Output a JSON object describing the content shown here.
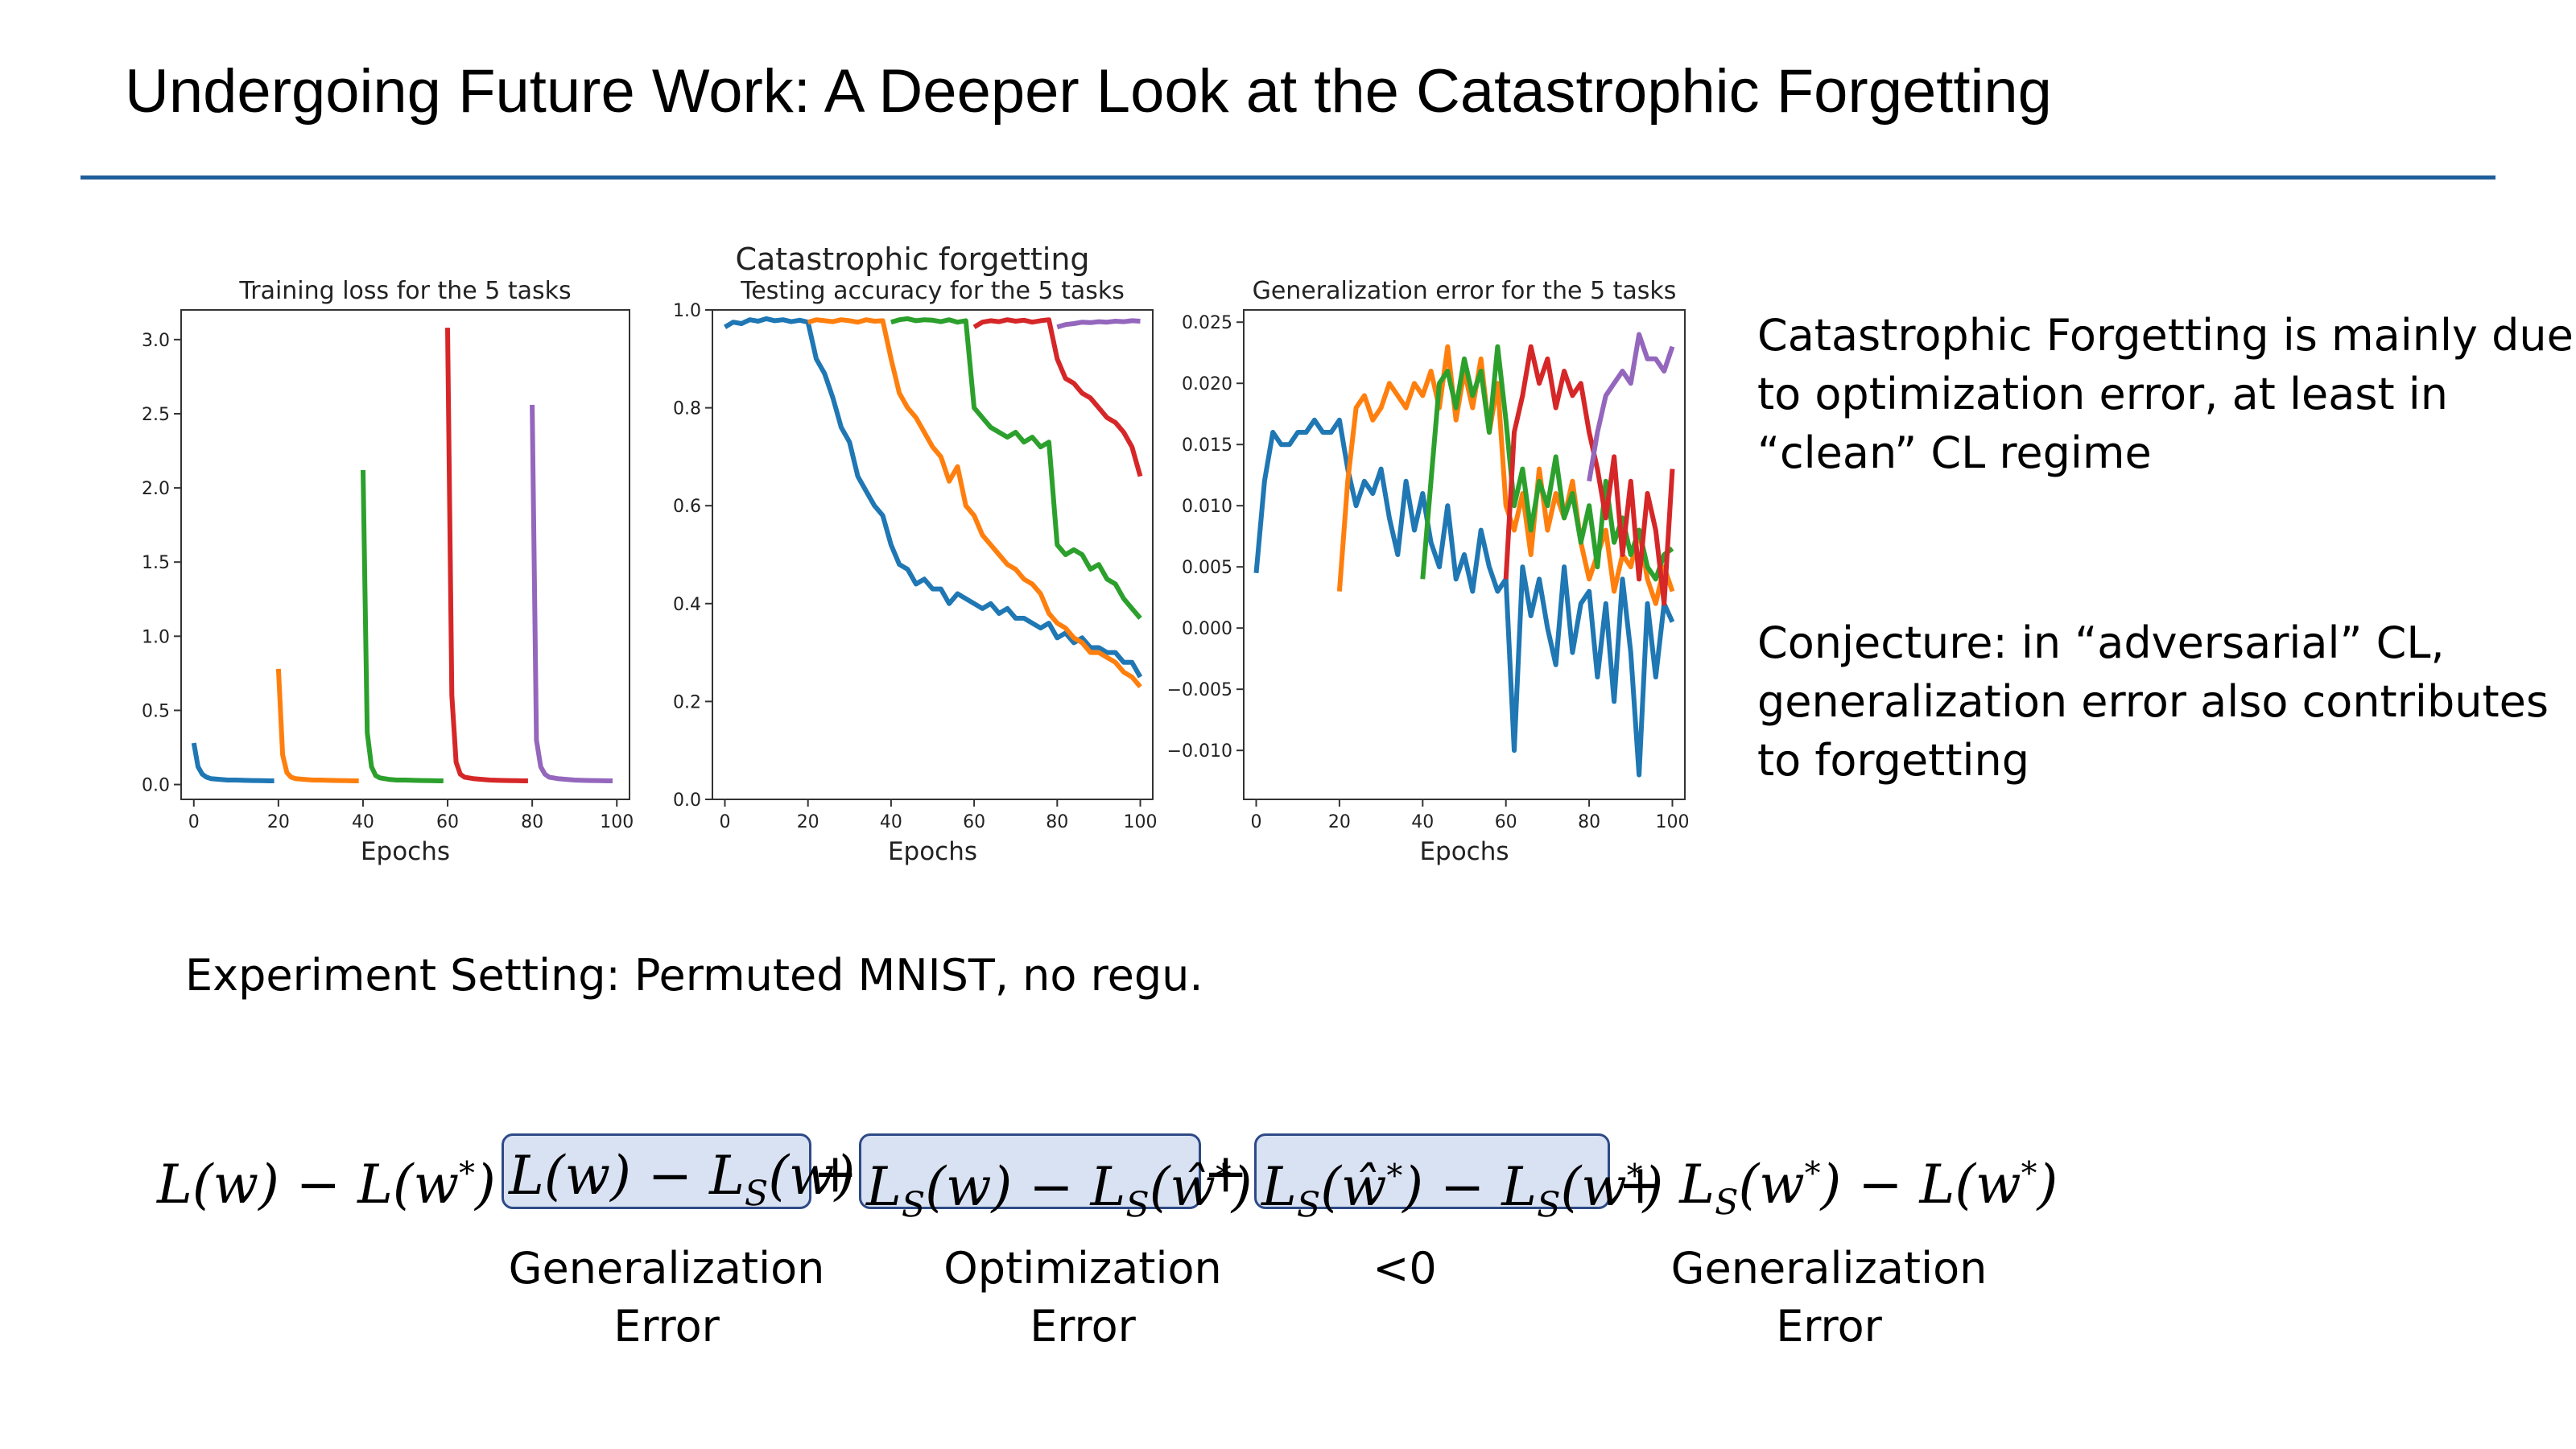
{
  "slide": {
    "title": "Undergoing Future Work: A Deeper Look at the Catastrophic Forgetting",
    "side_text": [
      "Catastrophic Forgetting is mainly due",
      "to optimization error, at least in",
      "“clean” CL regime",
      "Conjecture: in “adversarial” CL,",
      "generalization error also contributes",
      "to forgetting"
    ],
    "experiment": "Experiment Setting: Permuted MNIST, no regu.",
    "equation": {
      "lhs": "L(w) − L(w*) =",
      "term1": "L(w) − L_S(w)",
      "plus1": "+",
      "term2": "L_S(w) − L_S(ŵ*)",
      "plus2": "+",
      "term3": "L_S(ŵ*) − L_S(w*)",
      "term4": "+ L_S(w*) − L(w*)"
    },
    "labels": {
      "l1a": "Generalization",
      "l1b": "Error",
      "l2a": "Optimization",
      "l2b": "Error",
      "l3a": "<0",
      "l4a": "Generalization",
      "l4b": "Error"
    }
  },
  "colors": [
    "#1f77b4",
    "#ff7f0e",
    "#2ca02c",
    "#d62728",
    "#9467bd"
  ],
  "chart_data": [
    {
      "type": "line",
      "title": "Training loss for the 5 tasks",
      "xlabel": "Epochs",
      "ylabel": "",
      "xlim": [
        -3,
        103
      ],
      "ylim": [
        -0.1,
        3.2
      ],
      "xticks": [
        0,
        20,
        40,
        60,
        80,
        100
      ],
      "yticks": [
        0.0,
        0.5,
        1.0,
        1.5,
        2.0,
        2.5,
        3.0
      ],
      "grid": false,
      "series": [
        {
          "x": [
            0,
            1,
            2,
            3,
            4,
            6,
            8,
            10,
            12,
            14,
            16,
            18,
            19
          ],
          "y": [
            0.28,
            0.12,
            0.07,
            0.05,
            0.04,
            0.035,
            0.03,
            0.03,
            0.028,
            0.027,
            0.026,
            0.025,
            0.025
          ]
        },
        {
          "x": [
            20,
            21,
            22,
            23,
            24,
            26,
            28,
            30,
            32,
            34,
            36,
            38,
            39
          ],
          "y": [
            0.78,
            0.2,
            0.08,
            0.05,
            0.04,
            0.035,
            0.03,
            0.03,
            0.028,
            0.027,
            0.026,
            0.025,
            0.025
          ]
        },
        {
          "x": [
            40,
            41,
            42,
            43,
            44,
            46,
            48,
            50,
            52,
            54,
            56,
            58,
            59
          ],
          "y": [
            2.12,
            0.35,
            0.12,
            0.06,
            0.045,
            0.035,
            0.03,
            0.03,
            0.028,
            0.027,
            0.026,
            0.025,
            0.025
          ]
        },
        {
          "x": [
            60,
            61,
            62,
            63,
            64,
            66,
            68,
            70,
            72,
            74,
            76,
            78,
            79
          ],
          "y": [
            3.08,
            0.6,
            0.15,
            0.07,
            0.05,
            0.04,
            0.035,
            0.03,
            0.028,
            0.027,
            0.026,
            0.025,
            0.025
          ]
        },
        {
          "x": [
            80,
            81,
            82,
            83,
            84,
            86,
            88,
            90,
            92,
            94,
            96,
            98,
            99
          ],
          "y": [
            2.56,
            0.3,
            0.12,
            0.07,
            0.05,
            0.04,
            0.035,
            0.03,
            0.028,
            0.027,
            0.026,
            0.025,
            0.025
          ]
        }
      ]
    },
    {
      "type": "line",
      "suptitle": "Catastrophic forgetting",
      "title": "Testing accuracy for the 5 tasks",
      "xlabel": "Epochs",
      "ylabel": "",
      "xlim": [
        -3,
        103
      ],
      "ylim": [
        0.0,
        1.0
      ],
      "xticks": [
        0,
        20,
        40,
        60,
        80,
        100
      ],
      "yticks": [
        0.0,
        0.2,
        0.4,
        0.6,
        0.8,
        1.0
      ],
      "grid": false,
      "series": [
        {
          "x": [
            0,
            2,
            4,
            6,
            8,
            10,
            12,
            14,
            16,
            18,
            20,
            22,
            24,
            26,
            28,
            30,
            32,
            34,
            36,
            38,
            40,
            42,
            44,
            46,
            48,
            50,
            52,
            54,
            56,
            58,
            60,
            62,
            64,
            66,
            68,
            70,
            72,
            74,
            76,
            78,
            80,
            82,
            84,
            86,
            88,
            90,
            92,
            94,
            96,
            98,
            100
          ],
          "y": [
            0.965,
            0.975,
            0.972,
            0.98,
            0.977,
            0.982,
            0.978,
            0.98,
            0.976,
            0.979,
            0.975,
            0.9,
            0.87,
            0.82,
            0.76,
            0.73,
            0.66,
            0.63,
            0.6,
            0.58,
            0.52,
            0.48,
            0.47,
            0.44,
            0.45,
            0.43,
            0.43,
            0.4,
            0.42,
            0.41,
            0.4,
            0.39,
            0.4,
            0.38,
            0.39,
            0.37,
            0.37,
            0.36,
            0.35,
            0.36,
            0.33,
            0.34,
            0.32,
            0.33,
            0.31,
            0.31,
            0.3,
            0.3,
            0.28,
            0.28,
            0.25
          ]
        },
        {
          "x": [
            20,
            22,
            24,
            26,
            28,
            30,
            32,
            34,
            36,
            38,
            40,
            42,
            44,
            46,
            48,
            50,
            52,
            54,
            56,
            58,
            60,
            62,
            64,
            66,
            68,
            70,
            72,
            74,
            76,
            78,
            80,
            82,
            84,
            86,
            88,
            90,
            92,
            94,
            96,
            98,
            100
          ],
          "y": [
            0.975,
            0.98,
            0.978,
            0.976,
            0.98,
            0.978,
            0.975,
            0.98,
            0.977,
            0.978,
            0.9,
            0.83,
            0.8,
            0.78,
            0.75,
            0.72,
            0.7,
            0.65,
            0.68,
            0.6,
            0.58,
            0.54,
            0.52,
            0.5,
            0.48,
            0.47,
            0.45,
            0.44,
            0.42,
            0.38,
            0.36,
            0.35,
            0.33,
            0.32,
            0.3,
            0.3,
            0.29,
            0.28,
            0.26,
            0.25,
            0.23
          ]
        },
        {
          "x": [
            40,
            42,
            44,
            46,
            48,
            50,
            52,
            54,
            56,
            58,
            60,
            62,
            64,
            66,
            68,
            70,
            72,
            74,
            76,
            78,
            80,
            82,
            84,
            86,
            88,
            90,
            92,
            94,
            96,
            98,
            100
          ],
          "y": [
            0.975,
            0.98,
            0.982,
            0.978,
            0.98,
            0.979,
            0.976,
            0.98,
            0.975,
            0.978,
            0.8,
            0.78,
            0.76,
            0.75,
            0.74,
            0.75,
            0.73,
            0.74,
            0.72,
            0.73,
            0.52,
            0.5,
            0.51,
            0.5,
            0.47,
            0.48,
            0.45,
            0.44,
            0.41,
            0.39,
            0.37
          ]
        },
        {
          "x": [
            60,
            62,
            64,
            66,
            68,
            70,
            72,
            74,
            76,
            78,
            80,
            82,
            84,
            86,
            88,
            90,
            92,
            94,
            96,
            98,
            100
          ],
          "y": [
            0.965,
            0.975,
            0.978,
            0.976,
            0.98,
            0.977,
            0.979,
            0.975,
            0.978,
            0.98,
            0.9,
            0.86,
            0.85,
            0.83,
            0.82,
            0.8,
            0.78,
            0.77,
            0.75,
            0.72,
            0.66
          ]
        },
        {
          "x": [
            80,
            82,
            84,
            86,
            88,
            90,
            92,
            94,
            96,
            98,
            100
          ],
          "y": [
            0.965,
            0.97,
            0.972,
            0.975,
            0.974,
            0.976,
            0.975,
            0.977,
            0.976,
            0.978,
            0.977
          ]
        }
      ]
    },
    {
      "type": "line",
      "title": "Generalization error for the 5 tasks",
      "xlabel": "Epochs",
      "ylabel": "",
      "xlim": [
        -3,
        103
      ],
      "ylim": [
        -0.014,
        0.026
      ],
      "xticks": [
        0,
        20,
        40,
        60,
        80,
        100
      ],
      "yticks": [
        -0.01,
        -0.005,
        0.0,
        0.005,
        0.01,
        0.015,
        0.02,
        0.025
      ],
      "grid": false,
      "series": [
        {
          "x": [
            0,
            2,
            4,
            6,
            8,
            10,
            12,
            14,
            16,
            18,
            20,
            22,
            24,
            26,
            28,
            30,
            32,
            34,
            36,
            38,
            40,
            42,
            44,
            46,
            48,
            50,
            52,
            54,
            56,
            58,
            60,
            62,
            64,
            66,
            68,
            70,
            72,
            74,
            76,
            78,
            80,
            82,
            84,
            86,
            88,
            90,
            92,
            94,
            96,
            98,
            100
          ],
          "y": [
            0.0045,
            0.012,
            0.016,
            0.015,
            0.015,
            0.016,
            0.016,
            0.017,
            0.016,
            0.016,
            0.017,
            0.013,
            0.01,
            0.012,
            0.011,
            0.013,
            0.009,
            0.006,
            0.012,
            0.008,
            0.011,
            0.007,
            0.005,
            0.01,
            0.004,
            0.006,
            0.003,
            0.008,
            0.005,
            0.003,
            0.004,
            -0.01,
            0.005,
            0.001,
            0.004,
            0.0,
            -0.003,
            0.005,
            -0.002,
            0.002,
            0.003,
            -0.004,
            0.002,
            -0.006,
            0.004,
            -0.002,
            -0.012,
            0.002,
            -0.004,
            0.002,
            0.0005
          ]
        },
        {
          "x": [
            20,
            22,
            24,
            26,
            28,
            30,
            32,
            34,
            36,
            38,
            40,
            42,
            44,
            46,
            48,
            50,
            52,
            54,
            56,
            58,
            60,
            62,
            64,
            66,
            68,
            70,
            72,
            74,
            76,
            78,
            80,
            82,
            84,
            86,
            88,
            90,
            92,
            94,
            96,
            98,
            100
          ],
          "y": [
            0.003,
            0.012,
            0.018,
            0.019,
            0.017,
            0.018,
            0.02,
            0.019,
            0.018,
            0.02,
            0.019,
            0.021,
            0.018,
            0.023,
            0.017,
            0.021,
            0.018,
            0.022,
            0.016,
            0.02,
            0.01,
            0.008,
            0.011,
            0.006,
            0.013,
            0.008,
            0.011,
            0.009,
            0.012,
            0.007,
            0.004,
            0.006,
            0.008,
            0.003,
            0.006,
            0.005,
            0.008,
            0.004,
            0.002,
            0.005,
            0.003
          ]
        },
        {
          "x": [
            40,
            42,
            44,
            46,
            48,
            50,
            52,
            54,
            56,
            58,
            60,
            62,
            64,
            66,
            68,
            70,
            72,
            74,
            76,
            78,
            80,
            82,
            84,
            86,
            88,
            90,
            92,
            94,
            96,
            98,
            100
          ],
          "y": [
            0.004,
            0.012,
            0.02,
            0.021,
            0.018,
            0.022,
            0.019,
            0.021,
            0.016,
            0.023,
            0.017,
            0.01,
            0.013,
            0.008,
            0.012,
            0.01,
            0.014,
            0.009,
            0.011,
            0.007,
            0.01,
            0.005,
            0.012,
            0.007,
            0.009,
            0.006,
            0.008,
            0.005,
            0.004,
            0.006,
            0.0065
          ]
        },
        {
          "x": [
            60,
            62,
            64,
            66,
            68,
            70,
            72,
            74,
            76,
            78,
            80,
            82,
            84,
            86,
            88,
            90,
            92,
            94,
            96,
            98,
            100
          ],
          "y": [
            0.004,
            0.016,
            0.019,
            0.023,
            0.02,
            0.022,
            0.018,
            0.021,
            0.019,
            0.02,
            0.016,
            0.013,
            0.009,
            0.014,
            0.006,
            0.012,
            0.004,
            0.011,
            0.008,
            0.002,
            0.013
          ]
        },
        {
          "x": [
            80,
            82,
            84,
            86,
            88,
            90,
            92,
            94,
            96,
            98,
            100
          ],
          "y": [
            0.012,
            0.016,
            0.019,
            0.02,
            0.021,
            0.02,
            0.024,
            0.022,
            0.022,
            0.021,
            0.023
          ]
        }
      ]
    }
  ]
}
